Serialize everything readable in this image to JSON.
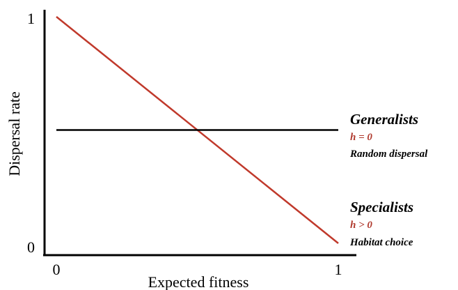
{
  "chart_data": {
    "type": "line",
    "xlabel": "Expected fitness",
    "ylabel": "Dispersal rate",
    "xlim": [
      0,
      1
    ],
    "ylim": [
      0,
      1
    ],
    "x_ticks": [
      "0",
      "1"
    ],
    "y_ticks": [
      "0",
      "1"
    ],
    "grid": false,
    "legend": "none",
    "series": [
      {
        "color": "#c0392b",
        "x": [
          0,
          1
        ],
        "y": [
          1,
          0
        ]
      },
      {
        "color": "#000000",
        "x": [
          0,
          1
        ],
        "y": [
          0.5,
          0.5
        ]
      }
    ],
    "annotations": [
      {
        "heading": "Generalists",
        "formula": "h = 0",
        "description": "Random dispersal"
      },
      {
        "heading": "Specialists",
        "formula": "h > 0",
        "description": "Habitat choice"
      }
    ],
    "formula_color": "#b03a2e"
  }
}
